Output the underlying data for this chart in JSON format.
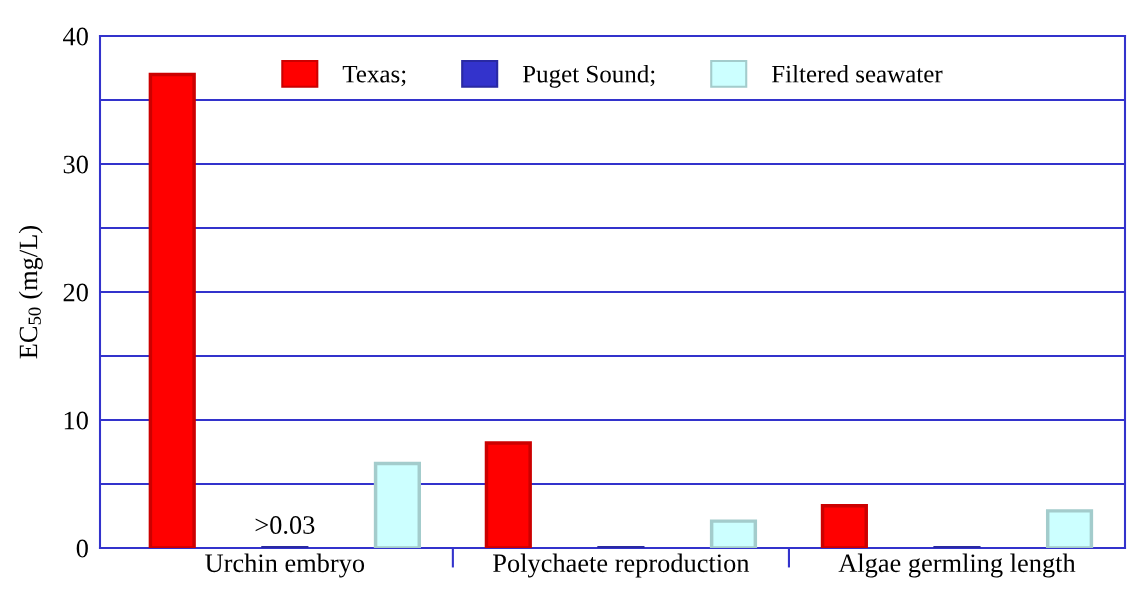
{
  "chart_data": {
    "type": "bar",
    "categories": [
      "Urchin embryo",
      "Polychaete reproduction",
      "Algae germling length"
    ],
    "series": [
      {
        "name": "Texas;",
        "color": "#ff0000",
        "values": [
          37.0,
          8.2,
          3.3
        ]
      },
      {
        "name": "Puget Sound;",
        "color": "#3333cc",
        "values": [
          0.03,
          0.03,
          0.03
        ],
        "value_labels": [
          ">0.03",
          null,
          null
        ]
      },
      {
        "name": "Filtered seawater",
        "color": "#ccffff",
        "values": [
          6.6,
          2.1,
          2.9
        ]
      }
    ],
    "ylabel": "EC$_{50}$ (mg/L)",
    "ylim": [
      0,
      40
    ],
    "yticks": [
      0,
      {
        "value": 5,
        "label": null
      },
      10,
      {
        "value": 15,
        "label": null
      },
      20,
      {
        "value": 25,
        "label": null
      },
      30,
      {
        "value": 35,
        "label": null
      },
      40
    ],
    "grid": "y",
    "legend": "top"
  }
}
